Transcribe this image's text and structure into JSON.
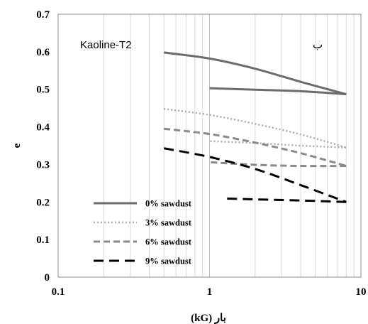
{
  "chart_data": {
    "type": "line",
    "x_scale": "log",
    "xlim": [
      0.1,
      10
    ],
    "ylim": [
      0,
      0.7
    ],
    "xlabel": "بار (kG)",
    "ylabel": "e",
    "x_ticks": [
      "0.1",
      "1",
      "10"
    ],
    "y_ticks": [
      "0",
      "0.1",
      "0.2",
      "0.3",
      "0.4",
      "0.5",
      "0.6",
      "0.7"
    ],
    "grid": "vertical minor log lines",
    "legend_placement": "bottom-left",
    "annotations": [
      "Kaoline-T2",
      "ب"
    ],
    "series": [
      {
        "name": "0% sawdust",
        "color": "#6b6b6b",
        "dash": "solid",
        "loading": [
          [
            0.5,
            0.598
          ],
          [
            1,
            0.582
          ],
          [
            2,
            0.555
          ],
          [
            4,
            0.52
          ],
          [
            8,
            0.487
          ]
        ],
        "unloading": [
          [
            8,
            0.487
          ],
          [
            4,
            0.495
          ],
          [
            2,
            0.499
          ],
          [
            1,
            0.503
          ]
        ]
      },
      {
        "name": "3% sawdust",
        "color": "#ababab",
        "dash": "dotted",
        "loading": [
          [
            0.5,
            0.448
          ],
          [
            1,
            0.432
          ],
          [
            2,
            0.408
          ],
          [
            4,
            0.38
          ],
          [
            8,
            0.345
          ]
        ],
        "unloading": [
          [
            8,
            0.345
          ],
          [
            4,
            0.35
          ],
          [
            2,
            0.357
          ],
          [
            1,
            0.362
          ]
        ]
      },
      {
        "name": "6% sawdust",
        "color": "#8a8a8a",
        "dash": "dashed",
        "loading": [
          [
            0.5,
            0.395
          ],
          [
            1,
            0.381
          ],
          [
            2,
            0.358
          ],
          [
            4,
            0.33
          ],
          [
            8,
            0.296
          ]
        ],
        "unloading": [
          [
            8,
            0.296
          ],
          [
            4,
            0.296
          ],
          [
            2,
            0.299
          ],
          [
            1,
            0.306
          ]
        ]
      },
      {
        "name": "9% sawdust",
        "color": "#000000",
        "dash": "long-dash",
        "loading": [
          [
            0.5,
            0.343
          ],
          [
            1,
            0.32
          ],
          [
            2,
            0.288
          ],
          [
            4,
            0.245
          ],
          [
            8,
            0.2
          ]
        ],
        "unloading": [
          [
            8,
            0.2
          ],
          [
            4,
            0.204
          ],
          [
            2,
            0.207
          ],
          [
            1.3,
            0.209
          ]
        ]
      }
    ]
  }
}
